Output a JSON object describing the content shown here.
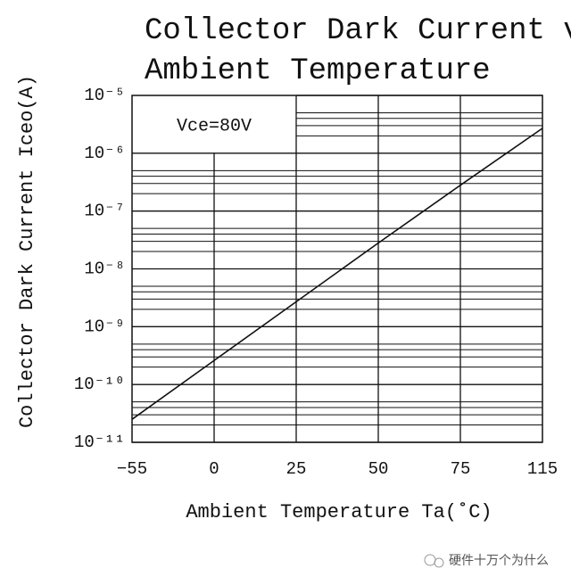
{
  "chart_data": {
    "type": "line",
    "title": [
      "Collector Dark Current vs.",
      "Ambient Temperature"
    ],
    "x_label": "Ambient Temperature Ta(˚C)",
    "y_label": "Collector Dark Current Iceo(A)",
    "annotation": "Vce=80V",
    "categories": [
      "−55",
      "0",
      "25",
      "50",
      "75",
      "115"
    ],
    "series": [
      {
        "name": "Iceo",
        "color": "#111111",
        "values": [
          2.5e-11,
          2.6e-10,
          2.7e-09,
          2.8e-08,
          2.8e-07,
          2.7e-06
        ]
      }
    ],
    "ylog": true,
    "ylim": [
      1e-11,
      1e-05
    ],
    "yticks": [
      {
        "value": 1e-05,
        "label": "10⁻⁵"
      },
      {
        "value": 1e-06,
        "label": "10⁻⁶"
      },
      {
        "value": 1e-07,
        "label": "10⁻⁷"
      },
      {
        "value": 1e-08,
        "label": "10⁻⁸"
      },
      {
        "value": 1e-09,
        "label": "10⁻⁹"
      },
      {
        "value": 1e-10,
        "label": "10⁻¹⁰"
      },
      {
        "value": 1e-11,
        "label": "10⁻¹¹"
      }
    ],
    "grid": true,
    "minor_grid": [
      2,
      3,
      4,
      5
    ]
  },
  "watermark": "硬件十万个为什么"
}
